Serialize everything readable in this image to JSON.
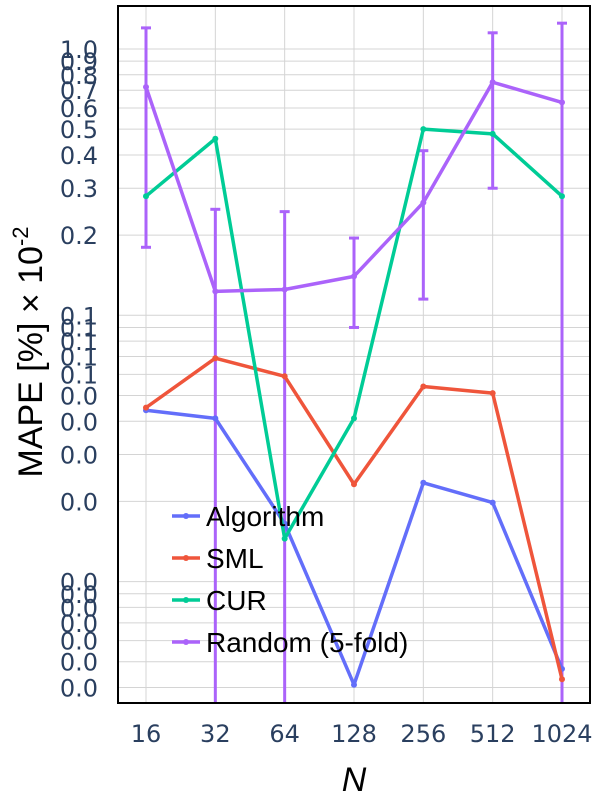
{
  "chart_data": {
    "type": "line",
    "x_title": "N",
    "y_title_main": "MAPE [%] × 10",
    "y_title_exp": "-2",
    "categories": [
      "16",
      "32",
      "64",
      "128",
      "256",
      "512",
      "1024"
    ],
    "y_scale": "log",
    "ylim": [
      0.0035,
      1.45
    ],
    "y_tick_values": [
      0.004,
      0.005,
      0.006,
      0.007,
      0.008,
      0.009,
      0.01,
      0.02,
      0.03,
      0.04,
      0.05,
      0.06,
      0.07,
      0.08,
      0.09,
      0.1,
      0.2,
      0.3,
      0.4,
      0.5,
      0.6,
      0.7,
      0.8,
      0.9,
      1.0
    ],
    "y_tick_labels": [
      "0.0",
      "0.0",
      "0.0",
      "0.0",
      "0.0",
      "0.0",
      "0.0",
      "0.0",
      "0.0",
      "0.0",
      "0.0",
      "0.1",
      "0.1",
      "0.1",
      "0.1",
      "0.1",
      "0.2",
      "0.3",
      "0.4",
      "0.5",
      "0.6",
      "0.7",
      "0.8",
      "0.9",
      "1.0"
    ],
    "grid": true,
    "legend_position": "bottom-left",
    "series": [
      {
        "name": "Algorithm",
        "color": "#636efa",
        "values": [
          0.044,
          0.041,
          0.0165,
          0.0041,
          0.0235,
          0.0198,
          0.0047
        ]
      },
      {
        "name": "SML",
        "color": "#ef553b",
        "values": [
          0.045,
          0.069,
          0.059,
          0.0232,
          0.054,
          0.051,
          0.0043
        ]
      },
      {
        "name": "CUR",
        "color": "#00cc96",
        "values": [
          0.28,
          0.46,
          0.0145,
          0.041,
          0.5,
          0.48,
          0.28
        ]
      },
      {
        "name": "Random (5-fold)",
        "color": "#ab63fa",
        "values": [
          0.72,
          0.123,
          0.125,
          0.14,
          0.265,
          0.75,
          0.63
        ],
        "error_upper": [
          1.2,
          0.25,
          0.245,
          0.195,
          0.415,
          1.15,
          1.25
        ],
        "error_lower": [
          0.18,
          0.001,
          0.001,
          0.09,
          0.115,
          0.3,
          0.001
        ]
      }
    ]
  }
}
